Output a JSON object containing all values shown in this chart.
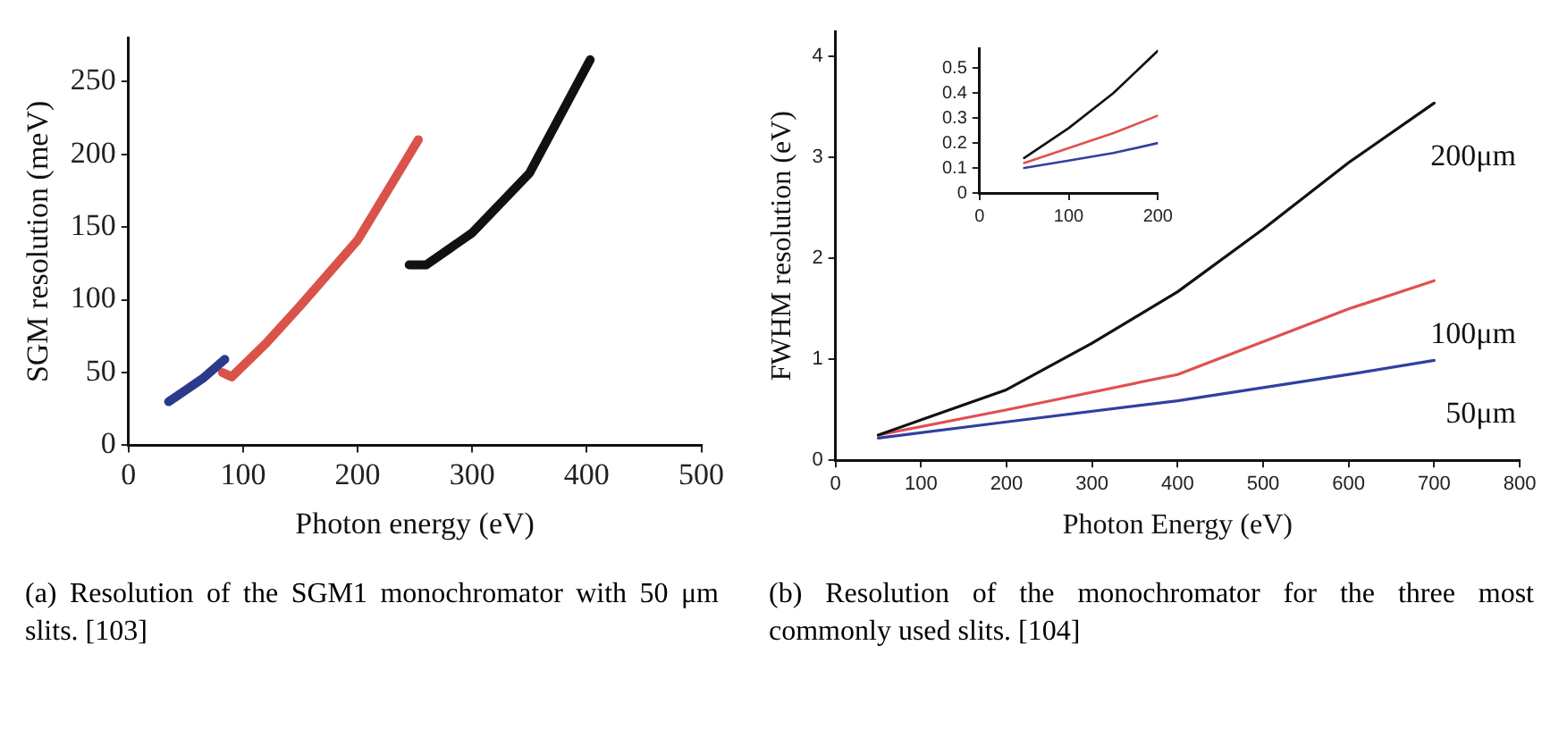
{
  "chart_data": [
    {
      "type": "line",
      "xlabel": "Photon energy (eV)",
      "ylabel": "SGM resolution (meV)",
      "xlim": [
        0,
        500
      ],
      "ylim": [
        0,
        280
      ],
      "xticks": [
        0,
        100,
        200,
        300,
        400,
        500
      ],
      "yticks": [
        0,
        50,
        100,
        150,
        200,
        250
      ],
      "grid": false,
      "legend": false,
      "marker": "none",
      "line_style": "solid",
      "annotations": [
        "(a) Resolution of the SGM1 monochromator with 50 μm slits. [103]"
      ],
      "series": [
        {
          "color": "#2b3a8a",
          "x": [
            35,
            50,
            65,
            84
          ],
          "values": [
            30,
            38,
            46,
            59
          ]
        },
        {
          "color": "#d9534a",
          "x": [
            82,
            90,
            120,
            150,
            200,
            230,
            253
          ],
          "values": [
            50,
            47,
            70,
            96,
            141,
            180,
            210
          ]
        },
        {
          "color": "#111111",
          "x": [
            245,
            260,
            300,
            350,
            403
          ],
          "values": [
            124,
            124,
            146,
            187,
            265
          ]
        }
      ]
    },
    {
      "type": "line",
      "xlabel": "Photon Energy (eV)",
      "ylabel": "FWHM resolution (eV)",
      "xlim": [
        0,
        800
      ],
      "ylim": [
        0,
        4.25
      ],
      "xticks": [
        0,
        100,
        200,
        300,
        400,
        500,
        600,
        700,
        800
      ],
      "yticks": [
        0,
        1,
        2,
        3,
        4
      ],
      "grid": false,
      "legend": false,
      "marker": "none",
      "line_style": "solid",
      "annotations": [
        "(b) Resolution of the monochromator for the three most commonly used slits. [104]"
      ],
      "series": [
        {
          "name": "200μm",
          "color": "#111111",
          "x": [
            50,
            100,
            200,
            300,
            400,
            500,
            600,
            700
          ],
          "values": [
            0.25,
            0.4,
            0.7,
            1.16,
            1.67,
            2.29,
            2.95,
            3.54
          ]
        },
        {
          "name": "100μm",
          "color": "#e05050",
          "x": [
            50,
            200,
            400,
            600,
            700
          ],
          "values": [
            0.25,
            0.5,
            0.85,
            1.5,
            1.78
          ]
        },
        {
          "name": "50μm",
          "color": "#3040a0",
          "x": [
            50,
            200,
            400,
            600,
            700
          ],
          "values": [
            0.22,
            0.38,
            0.59,
            0.85,
            0.99
          ]
        }
      ]
    },
    {
      "type": "line",
      "xlim": [
        0,
        200
      ],
      "ylim": [
        0,
        0.58
      ],
      "xticks": [
        0,
        100,
        200
      ],
      "yticks": [
        0,
        0.1,
        0.2,
        0.3,
        0.4,
        0.5
      ],
      "grid": false,
      "legend": false,
      "marker": "none",
      "line_style": "solid",
      "series": [
        {
          "color": "#111111",
          "x": [
            50,
            100,
            150,
            200
          ],
          "values": [
            0.14,
            0.26,
            0.4,
            0.57
          ]
        },
        {
          "color": "#e05050",
          "x": [
            50,
            100,
            150,
            200
          ],
          "values": [
            0.12,
            0.18,
            0.24,
            0.31
          ]
        },
        {
          "color": "#3040a0",
          "x": [
            50,
            100,
            150,
            200
          ],
          "values": [
            0.1,
            0.13,
            0.16,
            0.2
          ]
        }
      ]
    }
  ]
}
